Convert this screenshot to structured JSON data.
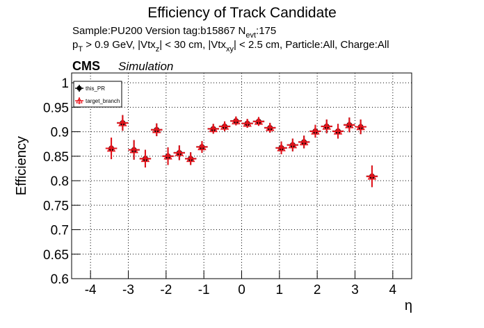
{
  "chart_data": {
    "type": "errorbar",
    "title": "Efficiency of Track Candidate",
    "info_lines": [
      [
        "Sample:PU200   Version tag:b15867  N",
        "evt",
        ":175"
      ],
      [
        "p",
        "T",
        " > 0.9 GeV, |Vtx",
        "z",
        "| < 30 cm, |Vtx",
        "xy",
        "| < 2.5 cm, Particle:All, Charge:All"
      ]
    ],
    "experiment": "CMS",
    "experiment_note": "Simulation",
    "xlabel": "η",
    "ylabel": "Efficiency",
    "x": [
      -3.45,
      -3.15,
      -2.85,
      -2.55,
      -2.25,
      -1.95,
      -1.65,
      -1.35,
      -1.05,
      -0.75,
      -0.45,
      -0.15,
      0.15,
      0.45,
      0.75,
      1.05,
      1.35,
      1.65,
      1.95,
      2.25,
      2.55,
      2.85,
      3.15,
      3.45
    ],
    "xerr": 0.15,
    "series": [
      {
        "name": "this_PR",
        "color": "#000000",
        "marker": "circle",
        "values": [
          0.866,
          0.918,
          0.863,
          0.845,
          0.904,
          0.85,
          0.857,
          0.845,
          0.869,
          0.906,
          0.911,
          0.922,
          0.917,
          0.921,
          0.908,
          0.867,
          0.873,
          0.879,
          0.901,
          0.911,
          0.901,
          0.914,
          0.91,
          0.809
        ],
        "errors": [
          0.022,
          0.016,
          0.02,
          0.018,
          0.013,
          0.018,
          0.015,
          0.013,
          0.012,
          0.01,
          0.01,
          0.009,
          0.009,
          0.009,
          0.01,
          0.013,
          0.013,
          0.013,
          0.013,
          0.014,
          0.015,
          0.015,
          0.015,
          0.022
        ]
      },
      {
        "name": "target_branch",
        "color": "#e8141c",
        "marker": "triangle",
        "values": [
          0.866,
          0.918,
          0.863,
          0.845,
          0.904,
          0.85,
          0.857,
          0.845,
          0.869,
          0.906,
          0.911,
          0.922,
          0.917,
          0.921,
          0.908,
          0.867,
          0.873,
          0.879,
          0.901,
          0.911,
          0.901,
          0.914,
          0.91,
          0.809
        ],
        "errors": [
          0.022,
          0.016,
          0.02,
          0.018,
          0.013,
          0.018,
          0.015,
          0.013,
          0.012,
          0.01,
          0.01,
          0.009,
          0.009,
          0.009,
          0.01,
          0.013,
          0.013,
          0.013,
          0.013,
          0.014,
          0.015,
          0.015,
          0.015,
          0.022
        ]
      }
    ],
    "xlim": [
      -4.5,
      4.5
    ],
    "ylim": [
      0.6,
      1.02
    ],
    "xticks": [
      -4,
      -3,
      -2,
      -1,
      0,
      1,
      2,
      3,
      4
    ],
    "yticks": [
      0.6,
      0.65,
      0.7,
      0.75,
      0.8,
      0.85,
      0.9,
      0.95,
      1
    ],
    "grid": true,
    "legend": "upper-left"
  }
}
